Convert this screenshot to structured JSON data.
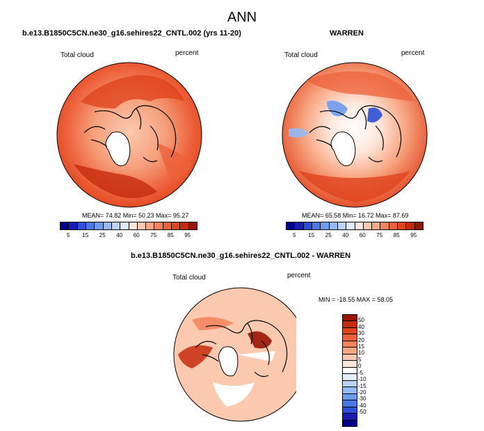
{
  "title": "ANN",
  "panels": {
    "left": {
      "case": "b.e13.B1850C5CN.ne30_g16.sehires22_CNTL.002 (yrs 11-20)",
      "field": "Total cloud",
      "units": "percent",
      "stats": "MEAN= 74.82  Min= 50.23  Max= 95.27"
    },
    "right": {
      "case": "WARREN",
      "field": "Total cloud",
      "units": "percent",
      "stats": "MEAN= 65.58  Min= 16.72  Max= 87.69"
    },
    "diff": {
      "case": "b.e13.B1850C5CN.ne30_g16.sehires22_CNTL.002 - WARREN",
      "field": "Total cloud",
      "units": "percent",
      "stats": "MIN = -18.55 MAX = 58.05"
    }
  },
  "colorbar_main": {
    "ticks": [
      "5",
      "15",
      "25",
      "40",
      "60",
      "75",
      "85",
      "95"
    ],
    "colors": [
      "#00008c",
      "#1a1ab4",
      "#2d4fd6",
      "#4a78e6",
      "#6c9bf0",
      "#93b9f6",
      "#bdd4fa",
      "#e2ecfd",
      "#fde6db",
      "#fbc9b0",
      "#f8a784",
      "#f3835c",
      "#ec603a",
      "#e0441d",
      "#c52c0e",
      "#9a1505"
    ]
  },
  "colorbar_diff": {
    "ticks": [
      "50",
      "40",
      "30",
      "20",
      "15",
      "10",
      "5",
      "0",
      "-5",
      "-10",
      "-15",
      "-20",
      "-30",
      "-40",
      "-50"
    ],
    "colors": [
      "#9a1505",
      "#c52c0e",
      "#e0441d",
      "#ec603a",
      "#f3835c",
      "#f8a784",
      "#fbc9b0",
      "#fde6db",
      "#ffffff",
      "#e2ecfd",
      "#bdd4fa",
      "#93b9f6",
      "#6c9bf0",
      "#4a78e6",
      "#2d4fd6",
      "#1a1ab4",
      "#00008c"
    ]
  }
}
